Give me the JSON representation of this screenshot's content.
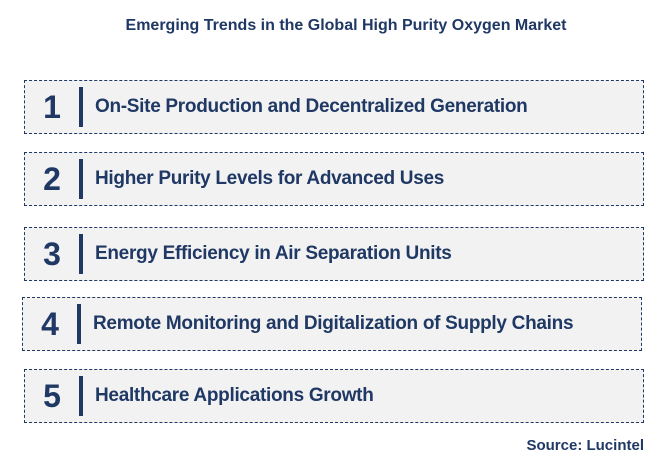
{
  "title": "Emerging Trends in the Global High Purity Oxygen Market",
  "trends": [
    {
      "number": "1",
      "label": "On-Site Production and Decentralized Generation"
    },
    {
      "number": "2",
      "label": "Higher Purity Levels for Advanced Uses"
    },
    {
      "number": "3",
      "label": "Energy Efficiency in Air Separation Units"
    },
    {
      "number": "4",
      "label": "Remote Monitoring and Digitalization of Supply Chains"
    },
    {
      "number": "5",
      "label": "Healthcare Applications Growth"
    }
  ],
  "source": "Source: Lucintel",
  "colors": {
    "text": "#1f3864",
    "box_fill": "#f2f2f2",
    "box_border": "#1f3864"
  }
}
